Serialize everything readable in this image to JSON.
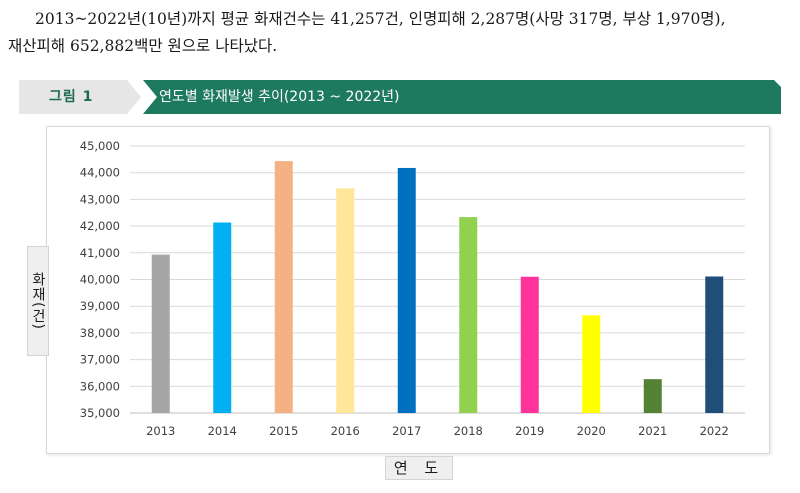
{
  "intro": {
    "line1": "2013~2022년(10년)까지 평균 화재건수는 41,257건, 인명피해 2,287명(사망 317명, 부상 1,970명),",
    "line2": "재산피해 652,882백만 원으로 나타났다."
  },
  "figure": {
    "label": "그림 1",
    "title": "연도별 화재발생 추이(2013 ~ 2022년)",
    "header_color": "#1e7a5e"
  },
  "chart_data": {
    "type": "bar",
    "xlabel": "연 도",
    "ylabel": "화재(건)",
    "ylim": [
      35000,
      45000
    ],
    "yticks": [
      "35,000",
      "36,000",
      "37,000",
      "38,000",
      "39,000",
      "40,000",
      "41,000",
      "42,000",
      "43,000",
      "44,000",
      "45,000"
    ],
    "grid": true,
    "categories": [
      "2013",
      "2014",
      "2015",
      "2016",
      "2017",
      "2018",
      "2019",
      "2020",
      "2021",
      "2022"
    ],
    "values": [
      40932,
      42135,
      44435,
      43413,
      44178,
      42338,
      40103,
      38659,
      36267,
      40113
    ],
    "colors": [
      "#a6a6a6",
      "#00b0f0",
      "#f4b183",
      "#ffe699",
      "#0070c0",
      "#92d050",
      "#ff3399",
      "#ffff00",
      "#548235",
      "#1f4e79"
    ]
  }
}
